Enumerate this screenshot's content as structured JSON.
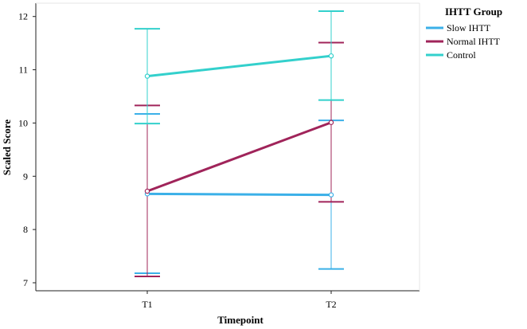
{
  "chart_data": {
    "type": "line",
    "xlabel": "Timepoint",
    "ylabel": "Scaled Score",
    "categories": [
      "T1",
      "T2"
    ],
    "ylim": [
      6.85,
      12.25
    ],
    "yticks": [
      7,
      8,
      9,
      10,
      11,
      12
    ],
    "grid": false,
    "error_bars": true,
    "legend": {
      "title": "IHTT Group",
      "placement": "right"
    },
    "series": [
      {
        "name": "Slow IHTT",
        "color": "#3bb0e8",
        "values": [
          8.67,
          8.65
        ],
        "lower": [
          7.18,
          7.26
        ],
        "upper": [
          10.17,
          10.05
        ]
      },
      {
        "name": "Normal IHTT",
        "color": "#a0245a",
        "values": [
          8.72,
          10.01
        ],
        "lower": [
          7.12,
          8.52
        ],
        "upper": [
          10.33,
          11.51
        ]
      },
      {
        "name": "Control",
        "color": "#33d0cc",
        "values": [
          10.88,
          11.26
        ],
        "lower": [
          9.99,
          10.43
        ],
        "upper": [
          11.77,
          12.1
        ]
      }
    ]
  }
}
